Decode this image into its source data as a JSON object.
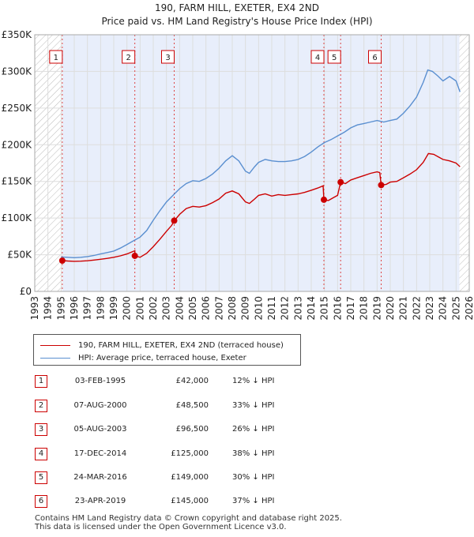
{
  "chart_data": {
    "type": "line",
    "title": "190, FARM HILL, EXETER, EX4 2ND",
    "subtitle": "Price paid vs. HM Land Registry's House Price Index (HPI)",
    "xlim": [
      1993,
      2026
    ],
    "ylim": [
      0,
      350000
    ],
    "y_ticks": [
      0,
      50000,
      100000,
      150000,
      200000,
      250000,
      300000,
      350000
    ],
    "y_tick_labels": [
      "£0",
      "£50K",
      "£100K",
      "£150K",
      "£200K",
      "£250K",
      "£300K",
      "£350K"
    ],
    "x_ticks": [
      1993,
      1994,
      1995,
      1996,
      1997,
      1998,
      1999,
      2000,
      2001,
      2002,
      2003,
      2004,
      2005,
      2006,
      2007,
      2008,
      2009,
      2010,
      2011,
      2012,
      2013,
      2014,
      2015,
      2016,
      2017,
      2018,
      2019,
      2020,
      2021,
      2022,
      2023,
      2024,
      2025,
      2026
    ],
    "x_tick_labels": [
      "1993",
      "1994",
      "1995",
      "1996",
      "1997",
      "1998",
      "1999",
      "2000",
      "2001",
      "2002",
      "2003",
      "2004",
      "2005",
      "2006",
      "2007",
      "2008",
      "2009",
      "2010",
      "2011",
      "2012",
      "2013",
      "2014",
      "2015",
      "2016",
      "2017",
      "2018",
      "2019",
      "2020",
      "2021",
      "2022",
      "2023",
      "2024",
      "2025",
      "2026"
    ],
    "hatched_before": 1995.09,
    "hatched_after": 2025.25,
    "shaded_from": 1995.09,
    "series": [
      {
        "name": "190, FARM HILL, EXETER, EX4 2ND (terraced house)",
        "color": "#cc0000",
        "points": [
          [
            1995.09,
            42000
          ],
          [
            1995.5,
            41500
          ],
          [
            1996.0,
            41000
          ],
          [
            1996.5,
            41200
          ],
          [
            1997.0,
            41800
          ],
          [
            1997.5,
            42800
          ],
          [
            1998.0,
            43800
          ],
          [
            1998.5,
            45000
          ],
          [
            1999.0,
            46500
          ],
          [
            1999.5,
            48500
          ],
          [
            2000.0,
            51000
          ],
          [
            2000.4,
            54000
          ],
          [
            2000.6,
            55500
          ],
          [
            2000.6,
            48500
          ],
          [
            2001.0,
            46500
          ],
          [
            2001.5,
            52000
          ],
          [
            2002.0,
            61000
          ],
          [
            2002.5,
            71000
          ],
          [
            2003.0,
            82000
          ],
          [
            2003.4,
            90000
          ],
          [
            2003.6,
            96500
          ],
          [
            2004.0,
            105000
          ],
          [
            2004.5,
            113000
          ],
          [
            2005.0,
            116000
          ],
          [
            2005.5,
            115000
          ],
          [
            2006.0,
            117000
          ],
          [
            2006.5,
            121000
          ],
          [
            2007.0,
            126000
          ],
          [
            2007.5,
            134000
          ],
          [
            2008.0,
            137000
          ],
          [
            2008.5,
            133000
          ],
          [
            2009.0,
            122000
          ],
          [
            2009.3,
            120000
          ],
          [
            2009.7,
            126000
          ],
          [
            2010.0,
            131000
          ],
          [
            2010.5,
            133000
          ],
          [
            2011.0,
            130000
          ],
          [
            2011.5,
            132000
          ],
          [
            2012.0,
            131000
          ],
          [
            2012.5,
            132000
          ],
          [
            2013.0,
            133000
          ],
          [
            2013.5,
            135000
          ],
          [
            2014.0,
            138000
          ],
          [
            2014.5,
            141000
          ],
          [
            2014.9,
            144000
          ],
          [
            2014.96,
            125000
          ],
          [
            2015.3,
            124000
          ],
          [
            2015.7,
            128000
          ],
          [
            2016.0,
            131000
          ],
          [
            2016.23,
            149000
          ],
          [
            2016.6,
            147000
          ],
          [
            2017.0,
            152000
          ],
          [
            2017.5,
            155000
          ],
          [
            2018.0,
            158000
          ],
          [
            2018.5,
            161000
          ],
          [
            2019.0,
            163000
          ],
          [
            2019.2,
            162000
          ],
          [
            2019.31,
            145000
          ],
          [
            2019.7,
            146000
          ],
          [
            2020.0,
            149000
          ],
          [
            2020.5,
            150000
          ],
          [
            2021.0,
            155000
          ],
          [
            2021.5,
            160000
          ],
          [
            2022.0,
            166000
          ],
          [
            2022.5,
            176000
          ],
          [
            2022.9,
            188000
          ],
          [
            2023.3,
            187000
          ],
          [
            2023.7,
            183000
          ],
          [
            2024.0,
            180000
          ],
          [
            2024.5,
            178000
          ],
          [
            2025.0,
            175000
          ],
          [
            2025.3,
            170000
          ]
        ]
      },
      {
        "name": "HPI: Average price, terraced house, Exeter",
        "color": "#5a8fd0",
        "points": [
          [
            1995.0,
            47000
          ],
          [
            1995.5,
            46500
          ],
          [
            1996.0,
            46000
          ],
          [
            1996.5,
            46500
          ],
          [
            1997.0,
            47500
          ],
          [
            1997.5,
            49000
          ],
          [
            1998.0,
            51000
          ],
          [
            1998.5,
            53000
          ],
          [
            1999.0,
            55000
          ],
          [
            1999.5,
            59000
          ],
          [
            2000.0,
            64000
          ],
          [
            2000.5,
            69000
          ],
          [
            2001.0,
            74000
          ],
          [
            2001.5,
            83000
          ],
          [
            2002.0,
            97000
          ],
          [
            2002.5,
            110000
          ],
          [
            2003.0,
            122000
          ],
          [
            2003.5,
            131000
          ],
          [
            2004.0,
            140000
          ],
          [
            2004.5,
            147000
          ],
          [
            2005.0,
            151000
          ],
          [
            2005.5,
            150000
          ],
          [
            2006.0,
            154000
          ],
          [
            2006.5,
            160000
          ],
          [
            2007.0,
            168000
          ],
          [
            2007.5,
            178000
          ],
          [
            2008.0,
            185000
          ],
          [
            2008.5,
            178000
          ],
          [
            2009.0,
            164000
          ],
          [
            2009.3,
            161000
          ],
          [
            2009.7,
            170000
          ],
          [
            2010.0,
            176000
          ],
          [
            2010.5,
            180000
          ],
          [
            2011.0,
            178000
          ],
          [
            2011.5,
            177000
          ],
          [
            2012.0,
            177000
          ],
          [
            2012.5,
            178000
          ],
          [
            2013.0,
            180000
          ],
          [
            2013.5,
            184000
          ],
          [
            2014.0,
            190000
          ],
          [
            2014.5,
            197000
          ],
          [
            2015.0,
            203000
          ],
          [
            2015.5,
            207000
          ],
          [
            2016.0,
            212000
          ],
          [
            2016.5,
            217000
          ],
          [
            2017.0,
            223000
          ],
          [
            2017.5,
            227000
          ],
          [
            2018.0,
            229000
          ],
          [
            2018.5,
            231000
          ],
          [
            2019.0,
            233000
          ],
          [
            2019.5,
            231000
          ],
          [
            2020.0,
            233000
          ],
          [
            2020.5,
            235000
          ],
          [
            2021.0,
            243000
          ],
          [
            2021.5,
            253000
          ],
          [
            2022.0,
            265000
          ],
          [
            2022.5,
            285000
          ],
          [
            2022.85,
            302000
          ],
          [
            2023.2,
            300000
          ],
          [
            2023.6,
            294000
          ],
          [
            2024.0,
            287000
          ],
          [
            2024.5,
            293000
          ],
          [
            2025.0,
            287000
          ],
          [
            2025.3,
            272000
          ]
        ]
      }
    ],
    "sale_markers": [
      {
        "label": "1",
        "year": 1995.09,
        "price": 42000
      },
      {
        "label": "2",
        "year": 2000.6,
        "price": 48500
      },
      {
        "label": "3",
        "year": 2003.59,
        "price": 96500
      },
      {
        "label": "4",
        "year": 2014.96,
        "price": 125000
      },
      {
        "label": "5",
        "year": 2016.23,
        "price": 149000
      },
      {
        "label": "6",
        "year": 2019.31,
        "price": 145000
      }
    ]
  },
  "legend": {
    "property_label": "190, FARM HILL, EXETER, EX4 2ND (terraced house)",
    "hpi_label": "HPI: Average price, terraced house, Exeter"
  },
  "sales": [
    {
      "num": "1",
      "date": "03-FEB-1995",
      "price": "£42,000",
      "hpi": "12% ↓ HPI"
    },
    {
      "num": "2",
      "date": "07-AUG-2000",
      "price": "£48,500",
      "hpi": "33% ↓ HPI"
    },
    {
      "num": "3",
      "date": "05-AUG-2003",
      "price": "£96,500",
      "hpi": "26% ↓ HPI"
    },
    {
      "num": "4",
      "date": "17-DEC-2014",
      "price": "£125,000",
      "hpi": "38% ↓ HPI"
    },
    {
      "num": "5",
      "date": "24-MAR-2016",
      "price": "£149,000",
      "hpi": "30% ↓ HPI"
    },
    {
      "num": "6",
      "date": "23-APR-2019",
      "price": "£145,000",
      "hpi": "37% ↓ HPI"
    }
  ],
  "footer": {
    "line1": "Contains HM Land Registry data © Crown copyright and database right 2025.",
    "line2": "This data is licensed under the Open Government Licence v3.0."
  }
}
